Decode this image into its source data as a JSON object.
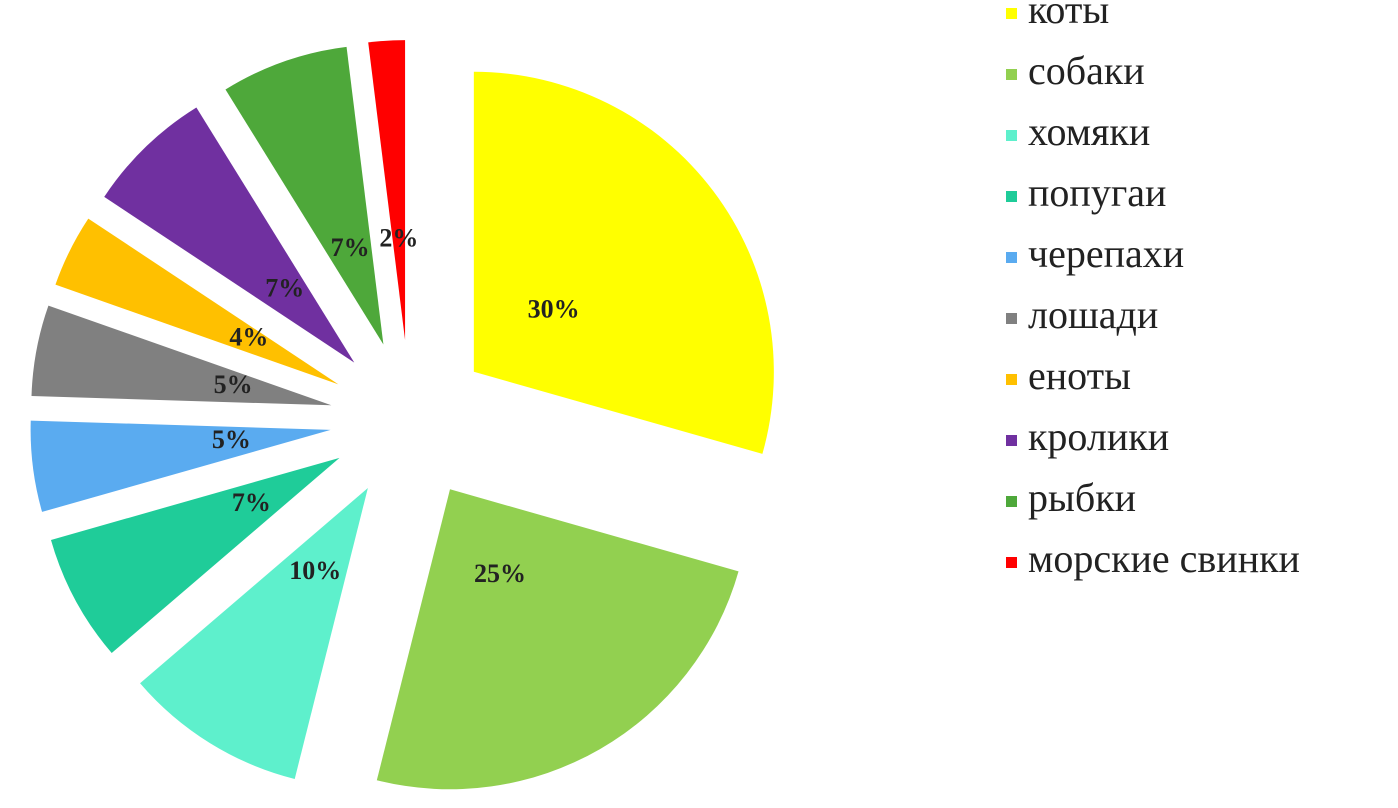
{
  "chart_data": {
    "type": "pie",
    "categories": [
      "коты",
      "собаки",
      "хомяки",
      "попугаи",
      "черепахи",
      "лошади",
      "еноты",
      "кролики",
      "рыбки",
      "морские свинки"
    ],
    "values": [
      30,
      25,
      10,
      7,
      5,
      5,
      4,
      7,
      7,
      2
    ],
    "value_labels": [
      "30%",
      "25%",
      "10%",
      "7%",
      "5%",
      "5%",
      "4%",
      "7%",
      "7%",
      "2%"
    ],
    "colors": [
      "#ffff00",
      "#92d050",
      "#5ef0cc",
      "#1fcc99",
      "#5aabf0",
      "#808080",
      "#ffc000",
      "#7030a0",
      "#4ea83a",
      "#ff0000"
    ],
    "legend": "right"
  }
}
